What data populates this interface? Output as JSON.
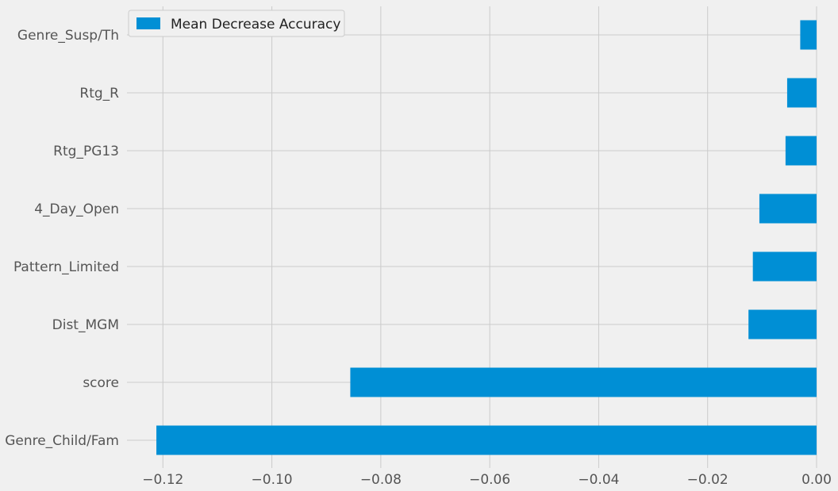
{
  "chart_data": {
    "type": "bar",
    "orientation": "horizontal",
    "categories": [
      "Genre_Susp/Th",
      "Rtg_R",
      "Rtg_PG13",
      "4_Day_Open",
      "Pattern_Limited",
      "Dist_MGM",
      "score",
      "Genre_Child/Fam"
    ],
    "series": [
      {
        "name": "Mean Decrease Accuracy",
        "values": [
          -0.003,
          -0.0054,
          -0.0057,
          -0.0105,
          -0.0117,
          -0.0125,
          -0.0856,
          -0.1212
        ]
      }
    ],
    "xlim": [
      -0.1266,
      0.0
    ],
    "xticks": [
      -0.12,
      -0.1,
      -0.08,
      -0.06,
      -0.04,
      -0.02,
      0.0
    ],
    "xtick_labels": [
      "−0.12",
      "−0.10",
      "−0.08",
      "−0.06",
      "−0.04",
      "−0.02",
      "0.00"
    ],
    "grid": true,
    "legend_position": "top-left",
    "colors": {
      "bar": "#008fd5",
      "grid": "#cbcbcb",
      "background": "#f0f0f0"
    }
  }
}
